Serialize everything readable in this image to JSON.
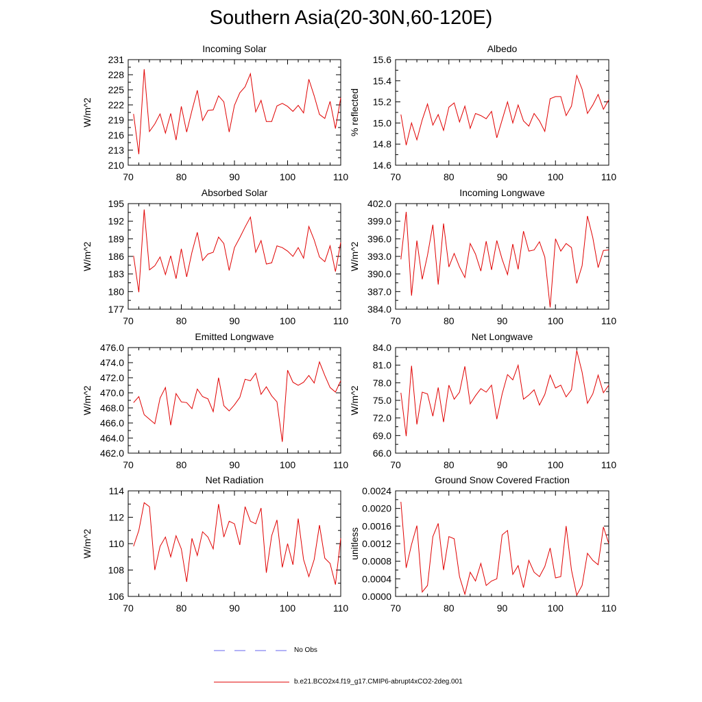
{
  "figure_title": "Southern Asia(20-30N,60-120E)",
  "colors": {
    "model_line": "#e00000",
    "obs_line": "#6666ee",
    "axes": "#000000"
  },
  "legend": [
    {
      "label": "No Obs",
      "style": "dashed",
      "color": "#6666ee"
    },
    {
      "label": "b.e21.BCO2x4.f19_g17.CMIP6-abrupt4xCO2-2deg.001",
      "style": "solid",
      "color": "#e00000"
    }
  ],
  "chart_data": [
    {
      "type": "line",
      "title": "Incoming Solar",
      "ylabel": "W/m^2",
      "xlim": [
        70,
        110
      ],
      "xticks": [
        70,
        80,
        90,
        100,
        110
      ],
      "ylim": [
        210,
        231
      ],
      "yticks": [
        "210",
        "213",
        "216",
        "219",
        "222",
        "225",
        "228",
        "231"
      ],
      "x": [
        71,
        72,
        73,
        74,
        75,
        76,
        77,
        78,
        79,
        80,
        81,
        82,
        83,
        84,
        85,
        86,
        87,
        88,
        89,
        90,
        91,
        92,
        93,
        94,
        95,
        96,
        97,
        98,
        99,
        100,
        101,
        102,
        103,
        104,
        105,
        106,
        107,
        108,
        109,
        110
      ],
      "series": [
        {
          "name": "b.e21.BCO2x4.f19_g17.CMIP6-abrupt4xCO2-2deg.001",
          "values": [
            220.2,
            212.2,
            229.1,
            216.7,
            218.2,
            220.2,
            216.4,
            220.3,
            215.0,
            221.7,
            216.6,
            220.9,
            224.9,
            218.9,
            220.9,
            221.0,
            223.8,
            222.6,
            216.6,
            221.9,
            224.4,
            225.6,
            228.2,
            220.6,
            222.9,
            218.7,
            218.7,
            221.8,
            222.3,
            221.7,
            220.7,
            221.9,
            220.4,
            227.1,
            223.8,
            220.1,
            219.3,
            222.7,
            217.3,
            223.4
          ]
        }
      ]
    },
    {
      "type": "line",
      "title": "Albedo",
      "ylabel": "% reflected",
      "xlim": [
        70,
        110
      ],
      "xticks": [
        70,
        80,
        90,
        100,
        110
      ],
      "ylim": [
        14.6,
        15.6
      ],
      "yticks": [
        "14.6",
        "14.8",
        "15.0",
        "15.2",
        "15.4",
        "15.6"
      ],
      "x": [
        71,
        72,
        73,
        74,
        75,
        76,
        77,
        78,
        79,
        80,
        81,
        82,
        83,
        84,
        85,
        86,
        87,
        88,
        89,
        90,
        91,
        92,
        93,
        94,
        95,
        96,
        97,
        98,
        99,
        100,
        101,
        102,
        103,
        104,
        105,
        106,
        107,
        108,
        109,
        110
      ],
      "series": [
        {
          "name": "b.e21.BCO2x4.f19_g17.CMIP6-abrupt4xCO2-2deg.001",
          "values": [
            15.08,
            14.79,
            15.0,
            14.84,
            15.03,
            15.18,
            14.98,
            15.08,
            14.93,
            15.15,
            15.19,
            15.01,
            15.16,
            14.95,
            15.09,
            15.07,
            15.04,
            15.11,
            14.86,
            15.03,
            15.2,
            15.0,
            15.17,
            15.02,
            14.97,
            15.09,
            15.02,
            14.92,
            15.23,
            15.25,
            15.25,
            15.07,
            15.16,
            15.45,
            15.32,
            15.09,
            15.17,
            15.27,
            15.13,
            15.22
          ]
        }
      ]
    },
    {
      "type": "line",
      "title": "Absorbed Solar",
      "ylabel": "W/m^2",
      "xlim": [
        70,
        110
      ],
      "xticks": [
        70,
        80,
        90,
        100,
        110
      ],
      "ylim": [
        177,
        195
      ],
      "yticks": [
        "177",
        "180",
        "183",
        "186",
        "189",
        "192",
        "195"
      ],
      "x": [
        71,
        72,
        73,
        74,
        75,
        76,
        77,
        78,
        79,
        80,
        81,
        82,
        83,
        84,
        85,
        86,
        87,
        88,
        89,
        90,
        91,
        92,
        93,
        94,
        95,
        96,
        97,
        98,
        99,
        100,
        101,
        102,
        103,
        104,
        105,
        106,
        107,
        108,
        109,
        110
      ],
      "series": [
        {
          "name": "b.e21.BCO2x4.f19_g17.CMIP6-abrupt4xCO2-2deg.001",
          "values": [
            186.1,
            179.9,
            194.0,
            183.7,
            184.4,
            185.9,
            182.9,
            186.1,
            182.2,
            187.3,
            182.5,
            186.7,
            190.1,
            185.3,
            186.4,
            186.7,
            189.3,
            188.2,
            183.6,
            187.5,
            189.2,
            191.0,
            192.7,
            186.7,
            188.7,
            184.7,
            184.9,
            187.8,
            187.5,
            186.9,
            186.0,
            187.5,
            185.7,
            191.1,
            188.8,
            185.9,
            185.1,
            187.8,
            183.4,
            188.4
          ]
        }
      ]
    },
    {
      "type": "line",
      "title": "Incoming Longwave",
      "ylabel": "W/m^2",
      "xlim": [
        70,
        110
      ],
      "xticks": [
        70,
        80,
        90,
        100,
        110
      ],
      "ylim": [
        384.0,
        402.0
      ],
      "yticks": [
        "384.0",
        "387.0",
        "390.0",
        "393.0",
        "396.0",
        "399.0",
        "402.0"
      ],
      "x": [
        71,
        72,
        73,
        74,
        75,
        76,
        77,
        78,
        79,
        80,
        81,
        82,
        83,
        84,
        85,
        86,
        87,
        88,
        89,
        90,
        91,
        92,
        93,
        94,
        95,
        96,
        97,
        98,
        99,
        100,
        101,
        102,
        103,
        104,
        105,
        106,
        107,
        108,
        109,
        110
      ],
      "series": [
        {
          "name": "b.e21.BCO2x4.f19_g17.CMIP6-abrupt4xCO2-2deg.001",
          "values": [
            392.5,
            400.6,
            386.3,
            395.7,
            389.1,
            393.2,
            398.4,
            388.2,
            398.6,
            391.2,
            393.5,
            391.2,
            389.4,
            395.2,
            393.4,
            390.5,
            395.6,
            390.7,
            395.7,
            392.5,
            389.9,
            395.1,
            390.8,
            397.3,
            393.9,
            394.1,
            395.5,
            392.9,
            384.3,
            396.0,
            393.9,
            395.2,
            394.5,
            388.4,
            391.4,
            399.9,
            396.2,
            391.1,
            394.0,
            394.1
          ]
        }
      ]
    },
    {
      "type": "line",
      "title": "Emitted Longwave",
      "ylabel": "W/m^2",
      "xlim": [
        70,
        110
      ],
      "xticks": [
        70,
        80,
        90,
        100,
        110
      ],
      "ylim": [
        462.0,
        476.0
      ],
      "yticks": [
        "462.0",
        "464.0",
        "466.0",
        "468.0",
        "470.0",
        "472.0",
        "474.0",
        "476.0"
      ],
      "x": [
        71,
        72,
        73,
        74,
        75,
        76,
        77,
        78,
        79,
        80,
        81,
        82,
        83,
        84,
        85,
        86,
        87,
        88,
        89,
        90,
        91,
        92,
        93,
        94,
        95,
        96,
        97,
        98,
        99,
        100,
        101,
        102,
        103,
        104,
        105,
        106,
        107,
        108,
        109,
        110
      ],
      "series": [
        {
          "name": "b.e21.BCO2x4.f19_g17.CMIP6-abrupt4xCO2-2deg.001",
          "values": [
            468.7,
            469.5,
            467.1,
            466.5,
            465.9,
            469.3,
            470.7,
            465.7,
            469.9,
            468.8,
            468.7,
            467.9,
            470.5,
            469.5,
            469.2,
            467.5,
            472.0,
            468.3,
            467.6,
            468.4,
            469.4,
            471.8,
            471.6,
            472.6,
            469.8,
            470.8,
            469.6,
            468.8,
            463.5,
            473.0,
            471.4,
            471.0,
            471.4,
            472.3,
            471.3,
            474.1,
            472.3,
            470.7,
            470.1,
            471.6
          ]
        }
      ]
    },
    {
      "type": "line",
      "title": "Net Longwave",
      "ylabel": "W/m^2",
      "xlim": [
        70,
        110
      ],
      "xticks": [
        70,
        80,
        90,
        100,
        110
      ],
      "ylim": [
        66.0,
        84.0
      ],
      "yticks": [
        "66.0",
        "69.0",
        "72.0",
        "75.0",
        "78.0",
        "81.0",
        "84.0"
      ],
      "x": [
        71,
        72,
        73,
        74,
        75,
        76,
        77,
        78,
        79,
        80,
        81,
        82,
        83,
        84,
        85,
        86,
        87,
        88,
        89,
        90,
        91,
        92,
        93,
        94,
        95,
        96,
        97,
        98,
        99,
        100,
        101,
        102,
        103,
        104,
        105,
        106,
        107,
        108,
        109,
        110
      ],
      "series": [
        {
          "name": "b.e21.BCO2x4.f19_g17.CMIP6-abrupt4xCO2-2deg.001",
          "values": [
            76.3,
            68.9,
            80.9,
            70.9,
            76.4,
            76.1,
            72.3,
            77.2,
            71.3,
            77.6,
            75.2,
            76.4,
            80.8,
            74.4,
            75.8,
            77.0,
            76.4,
            77.6,
            71.8,
            76.1,
            79.4,
            78.5,
            81.0,
            75.2,
            75.9,
            76.8,
            74.2,
            76.0,
            79.3,
            77.1,
            77.6,
            75.6,
            76.8,
            83.5,
            79.8,
            74.5,
            76.1,
            79.3,
            76.3,
            77.6
          ]
        }
      ]
    },
    {
      "type": "line",
      "title": "Net Radiation",
      "ylabel": "W/m^2",
      "xlim": [
        70,
        110
      ],
      "xticks": [
        70,
        80,
        90,
        100,
        110
      ],
      "ylim": [
        106,
        114
      ],
      "yticks": [
        "106",
        "108",
        "110",
        "112",
        "114"
      ],
      "x": [
        71,
        72,
        73,
        74,
        75,
        76,
        77,
        78,
        79,
        80,
        81,
        82,
        83,
        84,
        85,
        86,
        87,
        88,
        89,
        90,
        91,
        92,
        93,
        94,
        95,
        96,
        97,
        98,
        99,
        100,
        101,
        102,
        103,
        104,
        105,
        106,
        107,
        108,
        109,
        110
      ],
      "series": [
        {
          "name": "b.e21.BCO2x4.f19_g17.CMIP6-abrupt4xCO2-2deg.001",
          "values": [
            109.8,
            111.0,
            113.1,
            112.8,
            108.0,
            109.8,
            110.5,
            109.0,
            110.6,
            109.6,
            107.1,
            110.4,
            109.1,
            110.9,
            110.5,
            109.6,
            113.0,
            110.5,
            111.7,
            111.5,
            109.9,
            112.8,
            111.7,
            111.5,
            112.7,
            107.8,
            110.6,
            111.8,
            108.2,
            110.0,
            108.4,
            111.9,
            108.8,
            107.5,
            108.8,
            111.4,
            108.9,
            108.5,
            106.9,
            110.4
          ]
        }
      ]
    },
    {
      "type": "line",
      "title": "Ground Snow Covered Fraction",
      "ylabel": "unitless",
      "xlim": [
        70,
        110
      ],
      "xticks": [
        70,
        80,
        90,
        100,
        110
      ],
      "ylim": [
        0.0,
        0.0024
      ],
      "yticks": [
        "0.0000",
        "0.0004",
        "0.0008",
        "0.0012",
        "0.0016",
        "0.0020",
        "0.0024"
      ],
      "x": [
        71,
        72,
        73,
        74,
        75,
        76,
        77,
        78,
        79,
        80,
        81,
        82,
        83,
        84,
        85,
        86,
        87,
        88,
        89,
        90,
        91,
        92,
        93,
        94,
        95,
        96,
        97,
        98,
        99,
        100,
        101,
        102,
        103,
        104,
        105,
        106,
        107,
        108,
        109,
        110
      ],
      "series": [
        {
          "name": "b.e21.BCO2x4.f19_g17.CMIP6-abrupt4xCO2-2deg.001",
          "values": [
            0.00215,
            0.00065,
            0.00118,
            0.00161,
            0.0001,
            0.00025,
            0.00136,
            0.00166,
            0.0006,
            0.00136,
            0.00131,
            0.00045,
            5e-05,
            0.00055,
            0.00035,
            0.00075,
            0.00025,
            0.00035,
            0.0004,
            0.0014,
            0.0015,
            0.0005,
            0.0007,
            0.0002,
            0.00082,
            0.00055,
            0.00045,
            0.00068,
            0.0011,
            0.00042,
            0.00045,
            0.0016,
            0.0006,
            3e-05,
            0.00025,
            0.00098,
            0.00082,
            0.00072,
            0.00158,
            0.0012
          ]
        }
      ]
    }
  ]
}
